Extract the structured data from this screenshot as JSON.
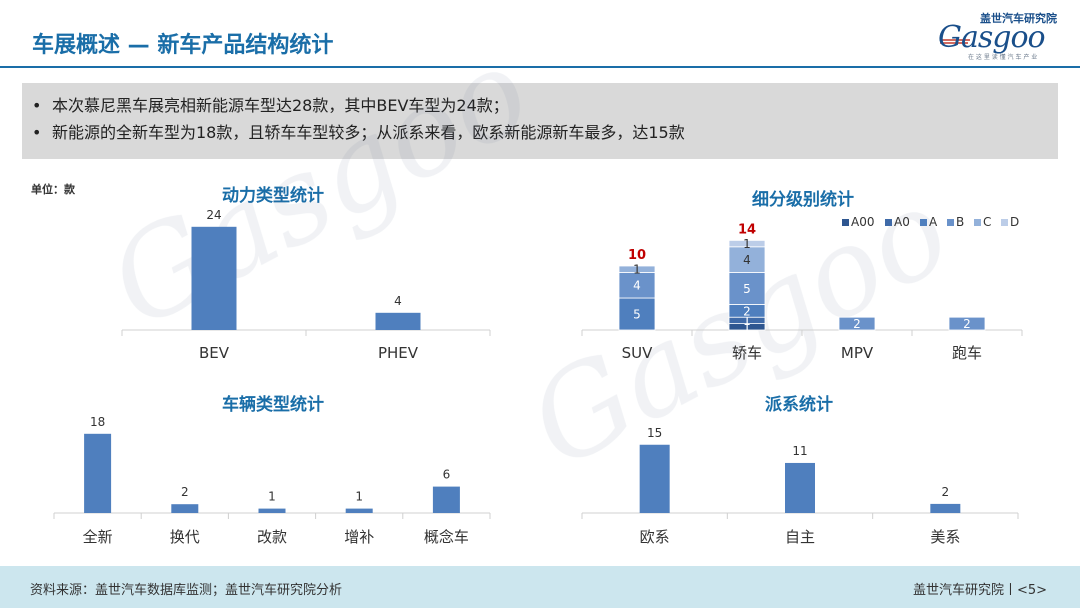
{
  "page": {
    "title": "车展概述 — 新车产品结构统计",
    "logo_cn": "盖世汽车研究院",
    "logo_mark": "Gasgoo",
    "logo_tag": "在 这 里 读 懂 汽 车 产 业",
    "bullets": [
      "本次慕尼黑车展亮相新能源车型达28款，其中BEV车型为24款；",
      "新能源的全新车型为18款，且轿车车型较多；从派系来看，欧系新能源新车最多，达15款"
    ],
    "unit_label": "单位：款",
    "footer_source": "资料来源：盖世汽车数据库监测；盖世汽车研究院分析",
    "footer_right": "盖世汽车研究院丨<5>",
    "colors": {
      "bar": "#4f7fbe",
      "title": "#1a6ea8",
      "total": "#c00000",
      "segments": [
        "#2e5690",
        "#3f6aa8",
        "#4f7fbe",
        "#6a92ca",
        "#93b1da",
        "#bccde8"
      ]
    }
  },
  "chart_data": [
    {
      "type": "bar",
      "title": "动力类型统计",
      "categories": [
        "BEV",
        "PHEV"
      ],
      "values": [
        24,
        4
      ]
    },
    {
      "type": "bar",
      "stacked": true,
      "title": "细分级别统计",
      "categories": [
        "SUV",
        "轿车",
        "MPV",
        "跑车"
      ],
      "legend_position": "top-right",
      "series": [
        {
          "name": "A00",
          "values": [
            0,
            1,
            0,
            0
          ]
        },
        {
          "name": "A0",
          "values": [
            0,
            1,
            0,
            0
          ]
        },
        {
          "name": "A",
          "values": [
            5,
            2,
            0,
            0
          ]
        },
        {
          "name": "B",
          "values": [
            4,
            5,
            2,
            2
          ]
        },
        {
          "name": "C",
          "values": [
            1,
            4,
            0,
            0
          ]
        },
        {
          "name": "D",
          "values": [
            0,
            1,
            0,
            0
          ]
        }
      ],
      "totals": [
        10,
        14,
        null,
        null
      ]
    },
    {
      "type": "bar",
      "title": "车辆类型统计",
      "categories": [
        "全新",
        "换代",
        "改款",
        "增补",
        "概念车"
      ],
      "values": [
        18,
        2,
        1,
        1,
        6
      ]
    },
    {
      "type": "bar",
      "title": "派系统计",
      "categories": [
        "欧系",
        "自主",
        "美系"
      ],
      "values": [
        15,
        11,
        2
      ]
    }
  ]
}
